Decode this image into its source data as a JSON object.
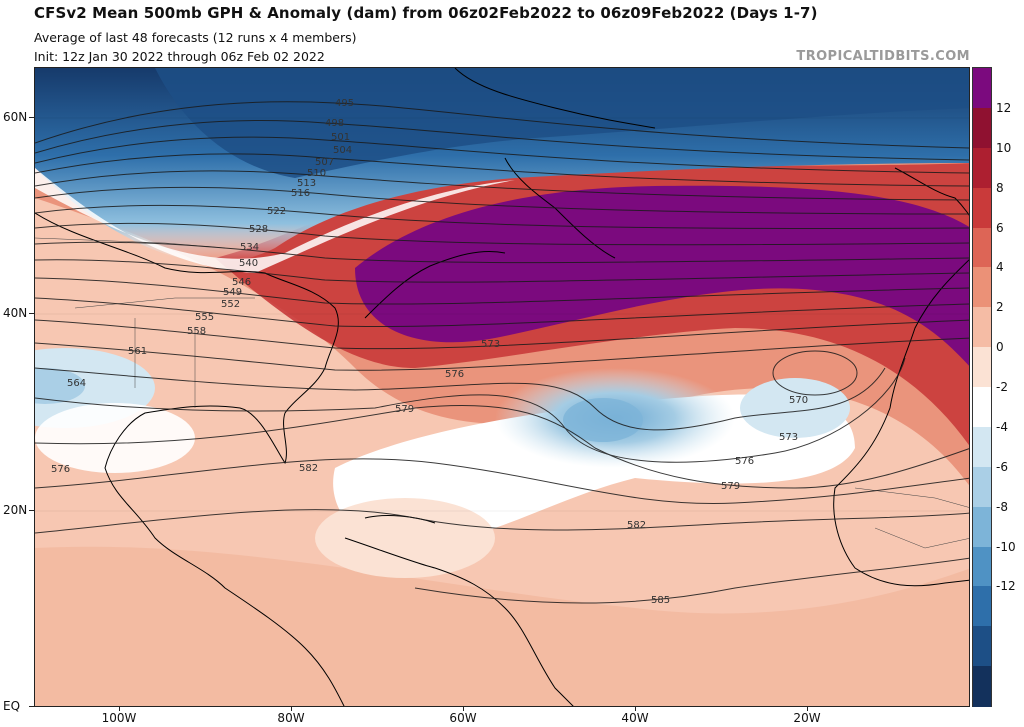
{
  "header": {
    "title": "CFSv2 Mean 500mb GPH & Anomaly (dam) from 06z02Feb2022 to 06z09Feb2022 (Days 1-7)",
    "subtitle": "Average of last 48 forecasts (12 runs x 4 members)",
    "init": "Init: 12z Jan 30 2022 through 06z Feb 02 2022",
    "credit": "TROPICALTIDBITS.COM"
  },
  "axes": {
    "lat_labels": [
      "60N",
      "40N",
      "20N",
      "EQ"
    ],
    "lon_labels": [
      "100W",
      "80W",
      "60W",
      "40W",
      "20W"
    ]
  },
  "colorbar": {
    "unit": "dam",
    "labels": [
      "12",
      "10",
      "8",
      "6",
      "4",
      "2",
      "0",
      "-2",
      "-4",
      "-6",
      "-8",
      "-10",
      "-12"
    ],
    "colors": [
      "#7b0a7e",
      "#8f1130",
      "#ad1f30",
      "#c93a3a",
      "#dd6556",
      "#eb9177",
      "#f5bca5",
      "#fbe2d4",
      "#ffffff",
      "#d3e7f2",
      "#aacfe6",
      "#7db4d8",
      "#4f92c4",
      "#2e6faa",
      "#1d4f86",
      "#13315c"
    ]
  },
  "contours": {
    "labels": [
      "495",
      "498",
      "501",
      "504",
      "507",
      "510",
      "513",
      "516",
      "522",
      "528",
      "534",
      "540",
      "546",
      "549",
      "552",
      "555",
      "558",
      "561",
      "564",
      "570",
      "573",
      "573",
      "576",
      "576",
      "576",
      "579",
      "579",
      "582",
      "582",
      "585"
    ]
  },
  "map": {
    "region": "North Atlantic",
    "positive_anomaly_center": "North Atlantic south of Greenland",
    "negative_anomaly_centers": [
      "Canadian Arctic",
      "Subtropical Atlantic near 30N 45W",
      "Gulf of Mexico / Texas"
    ]
  }
}
